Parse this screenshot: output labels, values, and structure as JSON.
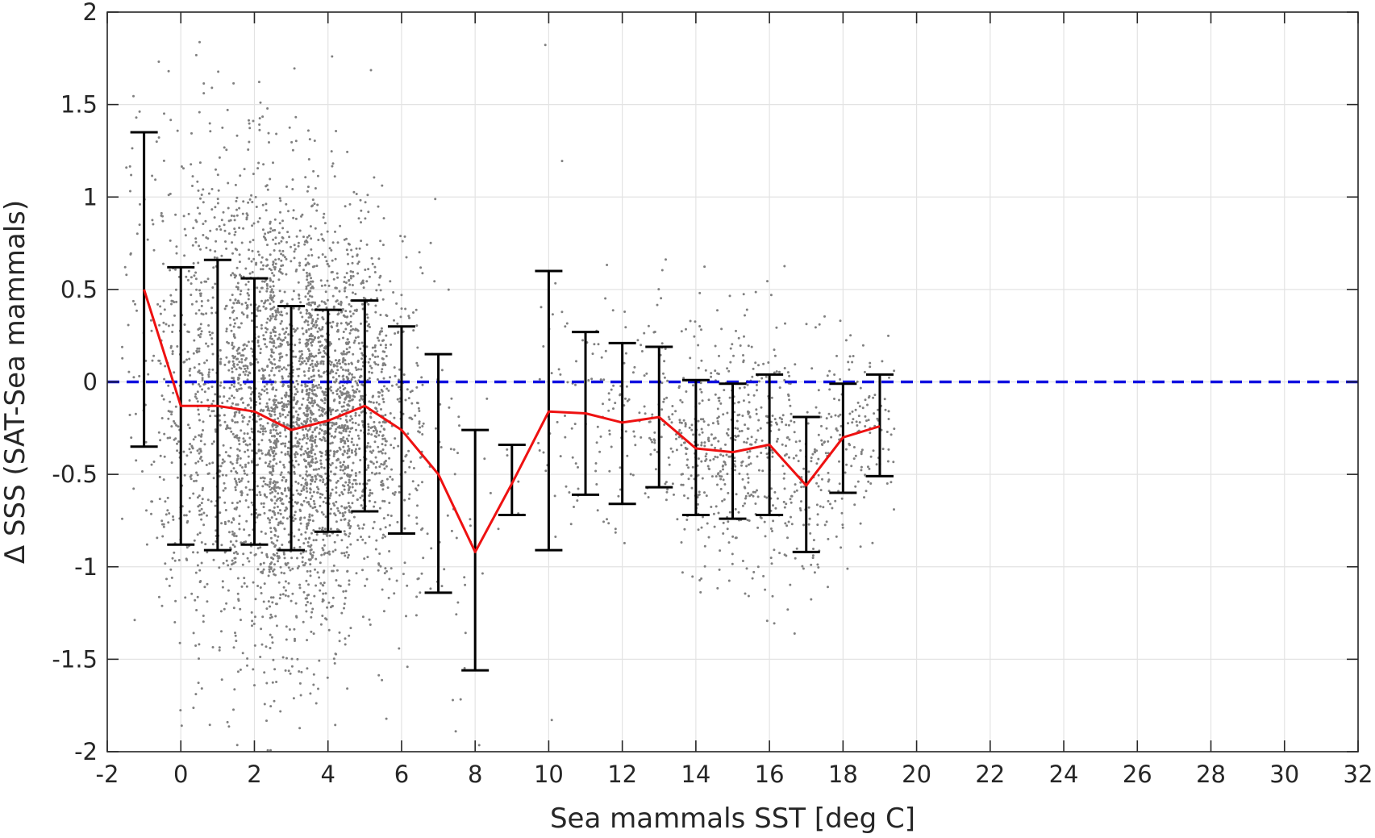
{
  "chart_data": {
    "type": "scatter",
    "title": "",
    "xlabel": "Sea mammals SST [deg C]",
    "ylabel": "Δ SSS (SAT-Sea mammals)",
    "xlim": [
      -2,
      32
    ],
    "ylim": [
      -2,
      2
    ],
    "xticks": [
      -2,
      0,
      2,
      4,
      6,
      8,
      10,
      12,
      14,
      16,
      18,
      20,
      22,
      24,
      26,
      28,
      30,
      32
    ],
    "yticks": [
      -2,
      -1.5,
      -1,
      -0.5,
      0,
      0.5,
      1,
      1.5,
      2
    ],
    "xtick_labels": [
      "-2",
      "0",
      "2",
      "4",
      "6",
      "8",
      "10",
      "12",
      "14",
      "16",
      "18",
      "20",
      "22",
      "24",
      "26",
      "28",
      "30",
      "32"
    ],
    "ytick_labels": [
      "-2",
      "-1.5",
      "-1",
      "-0.5",
      "0",
      "0.5",
      "1",
      "1.5",
      "2"
    ],
    "grid": true,
    "reference_line": {
      "y": 0,
      "style": "dashed",
      "color": "#1010e0"
    },
    "scatter_color": "#808080",
    "mean_color": "#ee1111",
    "errorbar_color": "#000000",
    "mean_line": {
      "x": [
        -1,
        0,
        1,
        2,
        3,
        4,
        5,
        6,
        7,
        8,
        9,
        10,
        11,
        12,
        13,
        14,
        15,
        16,
        17,
        18,
        19
      ],
      "y": [
        0.5,
        -0.13,
        -0.13,
        -0.16,
        -0.26,
        -0.21,
        -0.13,
        -0.26,
        -0.5,
        -0.92,
        -0.55,
        -0.16,
        -0.17,
        -0.22,
        -0.19,
        -0.36,
        -0.38,
        -0.34,
        -0.56,
        -0.3,
        -0.24
      ]
    },
    "error_bars": [
      {
        "x": -1,
        "low": -0.35,
        "high": 1.35
      },
      {
        "x": 0,
        "low": -0.88,
        "high": 0.62
      },
      {
        "x": 1,
        "low": -0.91,
        "high": 0.66
      },
      {
        "x": 2,
        "low": -0.88,
        "high": 0.56
      },
      {
        "x": 3,
        "low": -0.91,
        "high": 0.41
      },
      {
        "x": 4,
        "low": -0.81,
        "high": 0.39
      },
      {
        "x": 5,
        "low": -0.7,
        "high": 0.44
      },
      {
        "x": 6,
        "low": -0.82,
        "high": 0.3
      },
      {
        "x": 7,
        "low": -1.14,
        "high": 0.15
      },
      {
        "x": 8,
        "low": -1.56,
        "high": -0.26
      },
      {
        "x": 9,
        "low": -0.72,
        "high": -0.34
      },
      {
        "x": 10,
        "low": -0.91,
        "high": 0.6
      },
      {
        "x": 11,
        "low": -0.61,
        "high": 0.27
      },
      {
        "x": 12,
        "low": -0.66,
        "high": 0.21
      },
      {
        "x": 13,
        "low": -0.57,
        "high": 0.19
      },
      {
        "x": 14,
        "low": -0.72,
        "high": 0.01
      },
      {
        "x": 15,
        "low": -0.74,
        "high": -0.01
      },
      {
        "x": 16,
        "low": -0.72,
        "high": 0.04
      },
      {
        "x": 17,
        "low": -0.92,
        "high": -0.19
      },
      {
        "x": 18,
        "low": -0.6,
        "high": -0.01
      },
      {
        "x": 19,
        "low": -0.51,
        "high": 0.04
      }
    ],
    "scatter_clusters": [
      {
        "x_min": -1.6,
        "x_max": -0.6,
        "y_mean": 0.4,
        "y_sd": 0.7,
        "n": 60
      },
      {
        "x_min": -0.6,
        "x_max": 0.6,
        "y_mean": -0.12,
        "y_sd": 0.68,
        "n": 260
      },
      {
        "x_min": 0.4,
        "x_max": 1.6,
        "y_mean": -0.12,
        "y_sd": 0.72,
        "n": 380
      },
      {
        "x_min": 1.4,
        "x_max": 2.6,
        "y_mean": -0.16,
        "y_sd": 0.7,
        "n": 650
      },
      {
        "x_min": 2.4,
        "x_max": 3.6,
        "y_mean": -0.25,
        "y_sd": 0.62,
        "n": 850
      },
      {
        "x_min": 3.4,
        "x_max": 4.6,
        "y_mean": -0.2,
        "y_sd": 0.55,
        "n": 850
      },
      {
        "x_min": 4.4,
        "x_max": 5.6,
        "y_mean": -0.13,
        "y_sd": 0.48,
        "n": 520
      },
      {
        "x_min": 5.4,
        "x_max": 6.6,
        "y_mean": -0.26,
        "y_sd": 0.5,
        "n": 170
      },
      {
        "x_min": 6.4,
        "x_max": 7.6,
        "y_mean": -0.5,
        "y_sd": 0.6,
        "n": 40
      },
      {
        "x_min": 7.4,
        "x_max": 8.6,
        "y_mean": -0.9,
        "y_sd": 0.6,
        "n": 15
      },
      {
        "x_min": 8.6,
        "x_max": 9.4,
        "y_mean": -0.55,
        "y_sd": 0.2,
        "n": 6
      },
      {
        "x_min": 9.6,
        "x_max": 10.6,
        "y_mean": -0.16,
        "y_sd": 0.6,
        "n": 30
      },
      {
        "x_min": 10.6,
        "x_max": 11.6,
        "y_mean": -0.17,
        "y_sd": 0.4,
        "n": 40
      },
      {
        "x_min": 11.6,
        "x_max": 12.6,
        "y_mean": -0.22,
        "y_sd": 0.4,
        "n": 50
      },
      {
        "x_min": 12.6,
        "x_max": 13.6,
        "y_mean": -0.19,
        "y_sd": 0.35,
        "n": 80
      },
      {
        "x_min": 13.6,
        "x_max": 14.6,
        "y_mean": -0.36,
        "y_sd": 0.33,
        "n": 150
      },
      {
        "x_min": 14.6,
        "x_max": 15.6,
        "y_mean": -0.38,
        "y_sd": 0.33,
        "n": 180
      },
      {
        "x_min": 15.6,
        "x_max": 16.6,
        "y_mean": -0.34,
        "y_sd": 0.35,
        "n": 140
      },
      {
        "x_min": 16.6,
        "x_max": 17.6,
        "y_mean": -0.55,
        "y_sd": 0.33,
        "n": 100
      },
      {
        "x_min": 17.6,
        "x_max": 18.6,
        "y_mean": -0.3,
        "y_sd": 0.28,
        "n": 90
      },
      {
        "x_min": 18.6,
        "x_max": 19.4,
        "y_mean": -0.24,
        "y_sd": 0.26,
        "n": 50
      }
    ]
  }
}
